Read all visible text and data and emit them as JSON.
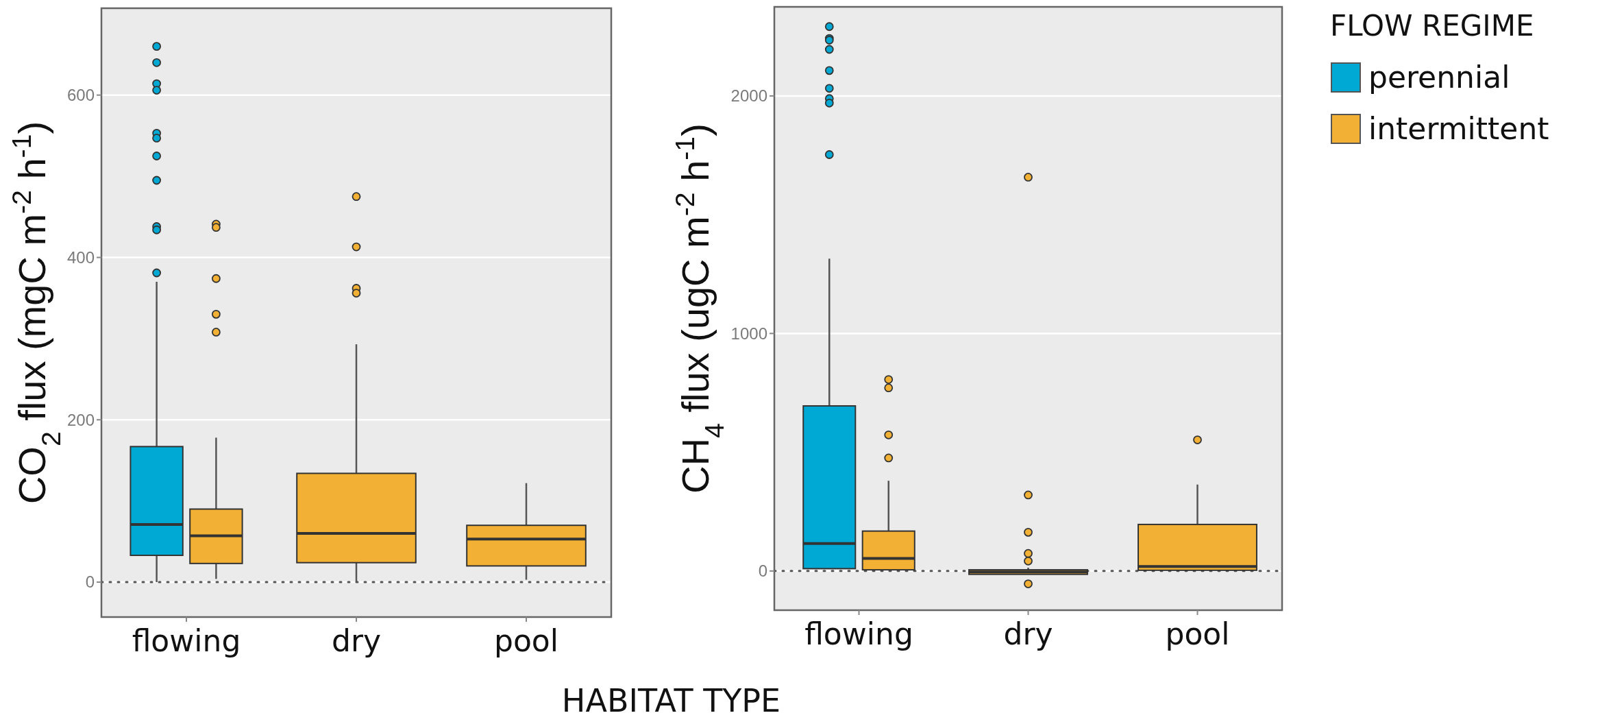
{
  "chart_data": [
    {
      "type": "box",
      "xlabel": "HABITAT TYPE",
      "ylabel": "CO$_{2}$ flux (mgC m$^{-2}$ h$^{-1}$)",
      "categories": [
        "flowing",
        "dry",
        "pool"
      ],
      "ylim": [
        -43,
        707
      ],
      "yticks": [
        0,
        200,
        400,
        600
      ],
      "grid": "y",
      "legend": false,
      "ref_lines": [
        {
          "axis": "y",
          "value": 0,
          "line_style": "dotted"
        }
      ],
      "series": [
        {
          "color": "#00a9d4",
          "boxes": [
            {
              "low": 0,
              "q1": 33,
              "median": 71,
              "q3": 167,
              "high": 370,
              "outliers": [
                660,
                640,
                614,
                606,
                553,
                547,
                525,
                495,
                438,
                434,
                381
              ]
            },
            null,
            null
          ]
        },
        {
          "color": "#f2b134",
          "boxes": [
            {
              "low": 4,
              "q1": 23,
              "median": 57,
              "q3": 90,
              "high": 178,
              "outliers": [
                441,
                437,
                374,
                330,
                308
              ]
            },
            {
              "low": 0,
              "q1": 24,
              "median": 60,
              "q3": 134,
              "high": 293,
              "outliers": [
                475,
                413,
                362,
                356
              ]
            },
            {
              "low": 3,
              "q1": 20,
              "median": 53,
              "q3": 70,
              "high": 122
            }
          ]
        }
      ]
    },
    {
      "type": "box",
      "ylabel": "CH$_{4}$ flux (ugC m$^{-2}$ h$^{-1}$)",
      "categories": [
        "flowing",
        "dry",
        "pool"
      ],
      "ylim": [
        -165,
        2375
      ],
      "yticks": [
        0,
        1000,
        2000
      ],
      "grid": "y",
      "legend": "right",
      "legend_title": "FLOW REGIME",
      "ref_lines": [
        {
          "axis": "y",
          "value": 0,
          "line_style": "dotted"
        }
      ],
      "series": [
        {
          "name": "perennial",
          "color": "#00a9d4",
          "boxes": [
            {
              "low": 10,
              "q1": 10,
              "median": 116,
              "q3": 695,
              "high": 1315,
              "outliers": [
                2292,
                2242,
                2235,
                2196,
                2107,
                2032,
                1989,
                1970,
                1753
              ]
            },
            null,
            null
          ]
        },
        {
          "name": "intermittent",
          "color": "#f2b134",
          "boxes": [
            {
              "low": 5,
              "q1": 5,
              "median": 53,
              "q3": 168,
              "high": 380,
              "outliers": [
                806,
                771,
                573,
                476
              ]
            },
            {
              "low": -14,
              "q1": -14,
              "median": -4,
              "q3": 5,
              "high": 14,
              "outliers": [
                1658,
                320,
                163,
                74,
                42,
                -54
              ]
            },
            {
              "low": 3,
              "q1": 3,
              "median": 19,
              "q3": 196,
              "high": 364,
              "outliers": [
                552
              ]
            }
          ]
        }
      ]
    }
  ]
}
